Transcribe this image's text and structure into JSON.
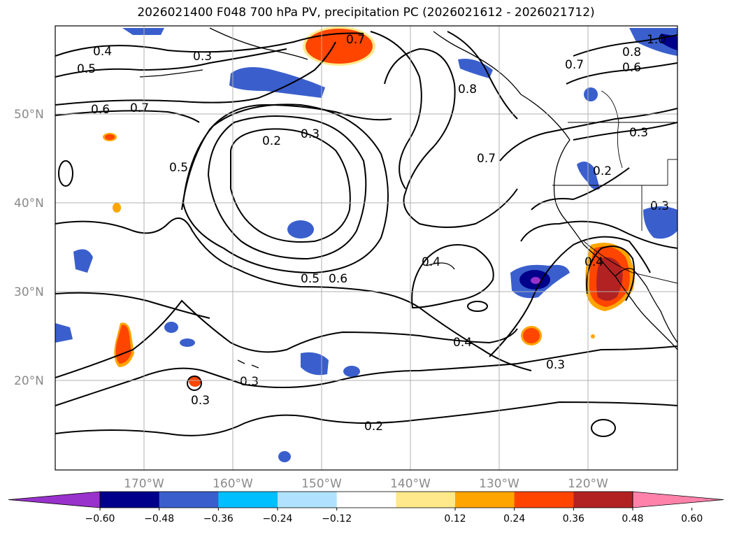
{
  "title": "2026021400 F048 700 hPa PV, precipitation PC (2026021612 - 2026021712)",
  "latitude_labels": [
    "50°N",
    "40°N",
    "30°N",
    "20°N"
  ],
  "longitude_labels": [
    "170°W",
    "160°W",
    "150°W",
    "140°W",
    "130°W",
    "120°W"
  ],
  "colorbar": {
    "colors": [
      "#9932CC",
      "#00008B",
      "#3A5FCD",
      "#00BFFF",
      "#B0E2FF",
      "#FFFFFF",
      "#FFE98A",
      "#FFA500",
      "#FF4500",
      "#B22222",
      "#FF82AB"
    ],
    "tick_labels": [
      "−0.60",
      "−0.48",
      "−0.36",
      "−0.24",
      "−0.12",
      "0.12",
      "0.24",
      "0.36",
      "0.48",
      "0.60"
    ]
  },
  "contour_labels": [
    "0.4",
    "0.5",
    "0.3",
    "0.7",
    "0.6",
    "0.7",
    "0.8",
    "0.2",
    "0.3",
    "0.5",
    "0.8",
    "1.0",
    "0.6",
    "0.7",
    "0.3",
    "0.2",
    "0.3",
    "0.7",
    "0.5",
    "0.6",
    "0.4",
    "0.4",
    "0.4",
    "0.3",
    "0.3",
    "0.3",
    "0.2"
  ]
}
